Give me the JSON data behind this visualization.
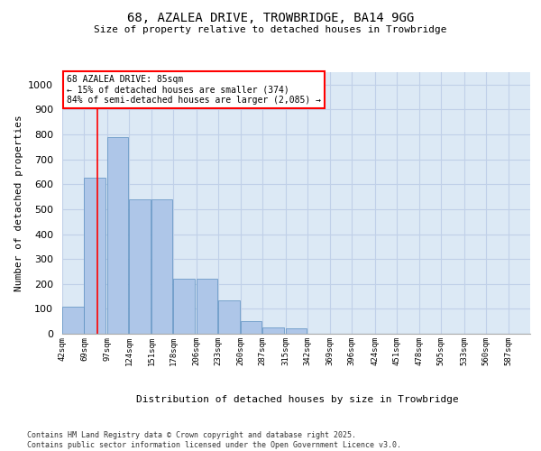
{
  "title_line1": "68, AZALEA DRIVE, TROWBRIDGE, BA14 9GG",
  "title_line2": "Size of property relative to detached houses in Trowbridge",
  "xlabel": "Distribution of detached houses by size in Trowbridge",
  "ylabel": "Number of detached properties",
  "background_color": "#dce9f5",
  "bar_color": "#aec6e8",
  "bar_edge_color": "#5a8fc0",
  "categories": [
    "42sqm",
    "69sqm",
    "97sqm",
    "124sqm",
    "151sqm",
    "178sqm",
    "206sqm",
    "233sqm",
    "260sqm",
    "287sqm",
    "315sqm",
    "342sqm",
    "369sqm",
    "396sqm",
    "424sqm",
    "451sqm",
    "478sqm",
    "505sqm",
    "533sqm",
    "560sqm",
    "587sqm"
  ],
  "bin_starts": [
    42,
    69,
    97,
    124,
    151,
    178,
    206,
    233,
    260,
    287,
    315,
    342,
    369,
    396,
    424,
    451,
    478,
    505,
    533,
    560
  ],
  "values": [
    110,
    625,
    790,
    540,
    540,
    220,
    220,
    135,
    50,
    25,
    20,
    0,
    0,
    0,
    0,
    0,
    0,
    0,
    0,
    0
  ],
  "ylim": [
    0,
    1050
  ],
  "yticks": [
    0,
    100,
    200,
    300,
    400,
    500,
    600,
    700,
    800,
    900,
    1000
  ],
  "red_line_x": 85,
  "annotation_title": "68 AZALEA DRIVE: 85sqm",
  "annotation_line2": "← 15% of detached houses are smaller (374)",
  "annotation_line3": "84% of semi-detached houses are larger (2,085) →",
  "footer_line1": "Contains HM Land Registry data © Crown copyright and database right 2025.",
  "footer_line2": "Contains public sector information licensed under the Open Government Licence v3.0.",
  "grid_color": "#c0d0e8",
  "xlim_left": 42,
  "xlim_right": 614
}
